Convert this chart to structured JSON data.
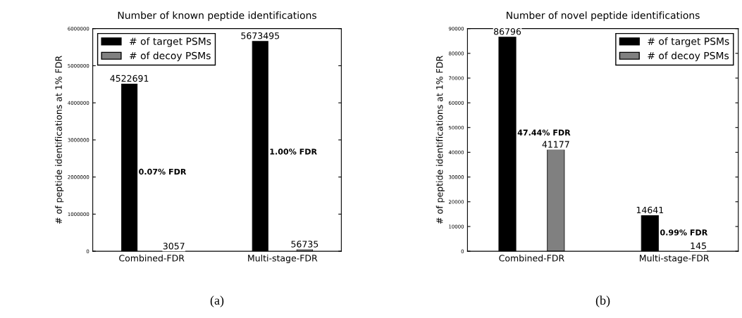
{
  "chart_data": [
    {
      "type": "bar",
      "title": "Number of known peptide identifications",
      "ylabel": "# of peptide identifications at 1% FDR",
      "categories": [
        "Combined-FDR",
        "Multi-stage-FDR"
      ],
      "series": [
        {
          "name": "# of target PSMs",
          "color": "#000000",
          "values": [
            4522691,
            5673495
          ]
        },
        {
          "name": "# of decoy PSMs",
          "color": "#808080",
          "values": [
            3057,
            56735
          ]
        }
      ],
      "ylim": [
        0,
        6000000
      ],
      "yticks": [
        0,
        1000000,
        2000000,
        3000000,
        4000000,
        5000000,
        6000000
      ],
      "data_labels": true,
      "legend": "top left",
      "grid": false,
      "annotations": [
        "0.07% FDR",
        "1.00% FDR",
        "(a)"
      ]
    },
    {
      "type": "bar",
      "title": "Number of novel peptide identifications",
      "ylabel": "# of peptide identifications at 1% FDR",
      "categories": [
        "Combined-FDR",
        "Multi-stage-FDR"
      ],
      "series": [
        {
          "name": "# of target PSMs",
          "color": "#000000",
          "values": [
            86796,
            14641
          ]
        },
        {
          "name": "# of decoy PSMs",
          "color": "#808080",
          "values": [
            41177,
            145
          ]
        }
      ],
      "ylim": [
        0,
        90000
      ],
      "yticks": [
        0,
        10000,
        20000,
        30000,
        40000,
        50000,
        60000,
        70000,
        80000,
        90000
      ],
      "data_labels": true,
      "legend": "top right",
      "grid": false,
      "annotations": [
        "47.44% FDR",
        "0.99% FDR",
        "(b)"
      ]
    }
  ]
}
